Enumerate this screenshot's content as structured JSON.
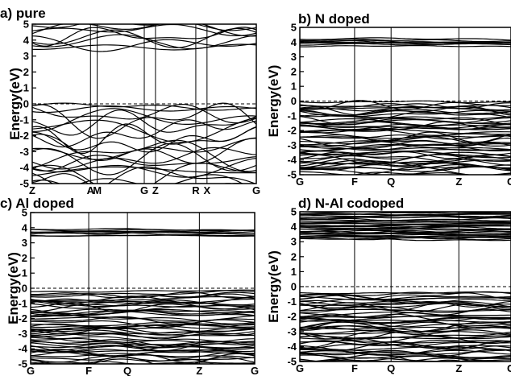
{
  "chart_data": [
    {
      "type": "line",
      "title": "a) pure",
      "ylabel": "Energy(eV)",
      "ylim": [
        -5,
        5
      ],
      "yticks": [
        "5",
        "4",
        "3",
        "2",
        "1",
        "0",
        "-1",
        "-2",
        "-3",
        "-4",
        "-5"
      ],
      "kpoints": [
        "Z",
        "A",
        "M",
        "G",
        "Z",
        "R",
        "X",
        "G"
      ],
      "kpoint_positions": [
        0,
        0.52,
        0.58,
        1.0,
        1.1,
        1.46,
        1.56,
        2.0
      ],
      "x_max": 2.0,
      "fermi_level": 0,
      "valence_band_max": -0.05,
      "conduction_band_min": 3.3,
      "band_count_valence": 22,
      "band_count_conduction": 8,
      "dispersion": "high"
    },
    {
      "type": "line",
      "title": "b) N doped",
      "ylabel": "Energy(eV)",
      "ylim": [
        -5,
        5
      ],
      "yticks": [
        "5",
        "4",
        "3",
        "2",
        "1",
        "0",
        "-1",
        "-2",
        "-3",
        "-4",
        "-5"
      ],
      "kpoints": [
        "G",
        "F",
        "Q",
        "Z",
        "G"
      ],
      "kpoint_positions": [
        0,
        0.42,
        0.7,
        1.22,
        1.62
      ],
      "x_max": 1.62,
      "fermi_level": 0,
      "valence_band_max": 0.1,
      "conduction_band_min": 3.55,
      "band_count_valence": 60,
      "band_count_conduction": 8,
      "dispersion": "low"
    },
    {
      "type": "line",
      "title": "c) Al doped",
      "ylabel": "Energy(eV)",
      "ylim": [
        -5,
        5
      ],
      "yticks": [
        "5",
        "4",
        "3",
        "2",
        "1",
        "0",
        "-1",
        "-2",
        "-3",
        "-4",
        "-5"
      ],
      "kpoints": [
        "G",
        "F",
        "Q",
        "Z",
        "G"
      ],
      "kpoint_positions": [
        0,
        0.42,
        0.7,
        1.22,
        1.62
      ],
      "x_max": 1.62,
      "fermi_level": 0,
      "valence_band_max": -0.05,
      "conduction_band_min": 3.25,
      "band_count_valence": 60,
      "band_count_conduction": 8,
      "dispersion": "low"
    },
    {
      "type": "line",
      "title": "d) N-Al codoped",
      "ylabel": "Energy(eV)",
      "ylim": [
        -5,
        5
      ],
      "yticks": [
        "5",
        "4",
        "3",
        "2",
        "1",
        "0",
        "-1",
        "-2",
        "-3",
        "-4",
        "-5"
      ],
      "kpoints": [
        "G",
        "F",
        "Q",
        "Z",
        "G"
      ],
      "kpoint_positions": [
        0,
        0.42,
        0.7,
        1.22,
        1.62
      ],
      "x_max": 1.62,
      "fermi_level": 0,
      "valence_band_max": -0.25,
      "conduction_band_min": 2.95,
      "band_count_valence": 60,
      "band_count_conduction": 40,
      "dispersion": "low"
    }
  ]
}
